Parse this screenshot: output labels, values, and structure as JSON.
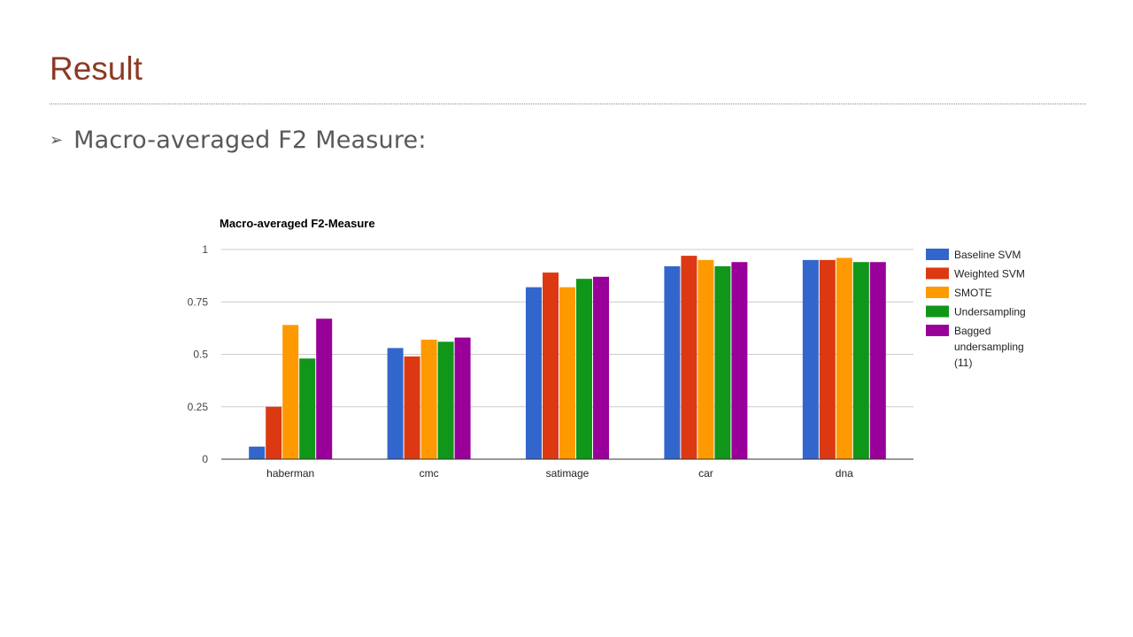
{
  "slide": {
    "title": "Result",
    "bullet_icon": "arrowhead-bullet-icon",
    "bullet_glyph": "➢",
    "bullet_text": "Macro-averaged F2 Measure:"
  },
  "chart_data": {
    "type": "bar",
    "title": "Macro-averaged F2-Measure",
    "xlabel": "",
    "ylabel": "",
    "ylim": [
      0,
      1
    ],
    "yticks": [
      0,
      0.25,
      0.5,
      0.75,
      1
    ],
    "ytick_labels": [
      "0",
      "0.25",
      "0.5",
      "0.75",
      "1"
    ],
    "grid": true,
    "legend_position": "right",
    "categories": [
      "haberman",
      "cmc",
      "satimage",
      "car",
      "dna"
    ],
    "series": [
      {
        "name": "Baseline SVM",
        "color": "#3366cc",
        "values": [
          0.06,
          0.53,
          0.82,
          0.92,
          0.95
        ]
      },
      {
        "name": "Weighted SVM",
        "color": "#dc3912",
        "values": [
          0.25,
          0.49,
          0.89,
          0.97,
          0.95
        ]
      },
      {
        "name": "SMOTE",
        "color": "#ff9900",
        "values": [
          0.64,
          0.57,
          0.82,
          0.95,
          0.96
        ]
      },
      {
        "name": "Undersampling",
        "color": "#109618",
        "values": [
          0.48,
          0.56,
          0.86,
          0.92,
          0.94
        ]
      },
      {
        "name": "Bagged undersampling (11)",
        "legend_lines": [
          "Bagged",
          "undersampling",
          "(11)"
        ],
        "color": "#990099",
        "values": [
          0.67,
          0.58,
          0.87,
          0.94,
          0.94
        ]
      }
    ]
  }
}
